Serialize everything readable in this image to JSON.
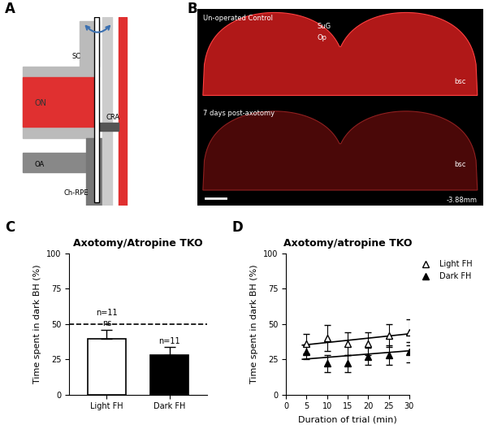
{
  "panel_labels": [
    "A",
    "B",
    "C",
    "D"
  ],
  "diagram": {
    "labels": {
      "SC": "SC",
      "ON": "ON",
      "CRA": "CRA",
      "OA": "OA",
      "ChRPE": "Ch-RPE"
    }
  },
  "image": {
    "top_label": "Un-operated Control",
    "layer1": "SuG",
    "layer2": "Op",
    "bsc_top": "bsc",
    "bottom_label": "7 days post-axotomy",
    "bsc_bottom": "bsc",
    "coordinate": "-3.88mm"
  },
  "chart_data": [
    {
      "type": "bar",
      "title": "Axotomy/Atropine TKO",
      "categories": [
        "Light FH",
        "Dark FH"
      ],
      "values": [
        39.5,
        28
      ],
      "errors": [
        6.5,
        5.5
      ],
      "colors": [
        "#ffffff",
        "#000000"
      ],
      "ylabel": "Time spent in dark BH (%)",
      "ylim": [
        0,
        100
      ],
      "yticks": [
        0,
        25,
        50,
        75,
        100
      ],
      "reference_line": 50,
      "annotations": [
        {
          "category": 0,
          "texts": [
            "n=11",
            "ns"
          ]
        },
        {
          "category": 1,
          "texts": [
            "n=11"
          ]
        }
      ]
    },
    {
      "type": "line",
      "title": "Axotomy/atropine TKO",
      "xlabel": "Duration of trial (min)",
      "ylabel": "Time spent in dark BH (%)",
      "x": [
        5,
        10,
        15,
        20,
        25,
        30
      ],
      "xlim": [
        0,
        30
      ],
      "xticks": [
        0,
        5,
        10,
        15,
        20,
        25,
        30
      ],
      "ylim": [
        0,
        100
      ],
      "yticks": [
        0,
        25,
        50,
        75,
        100
      ],
      "legend": "right",
      "series": [
        {
          "name": "Light FH",
          "color": "#000000",
          "marker": "open_triangle",
          "values": [
            36,
            40,
            36,
            36,
            42,
            44
          ],
          "errors": [
            7,
            9,
            8,
            8,
            8,
            9
          ],
          "fit_x": [
            4,
            30
          ],
          "fit_values": [
            35,
            43
          ]
        },
        {
          "name": "Dark FH",
          "color": "#000000",
          "marker": "filled_triangle",
          "values": [
            30,
            22,
            22,
            27,
            28,
            30
          ],
          "errors": [
            5,
            6,
            6,
            6,
            7,
            7
          ],
          "fit_x": [
            4,
            30
          ],
          "fit_values": [
            25,
            31
          ]
        }
      ]
    }
  ]
}
